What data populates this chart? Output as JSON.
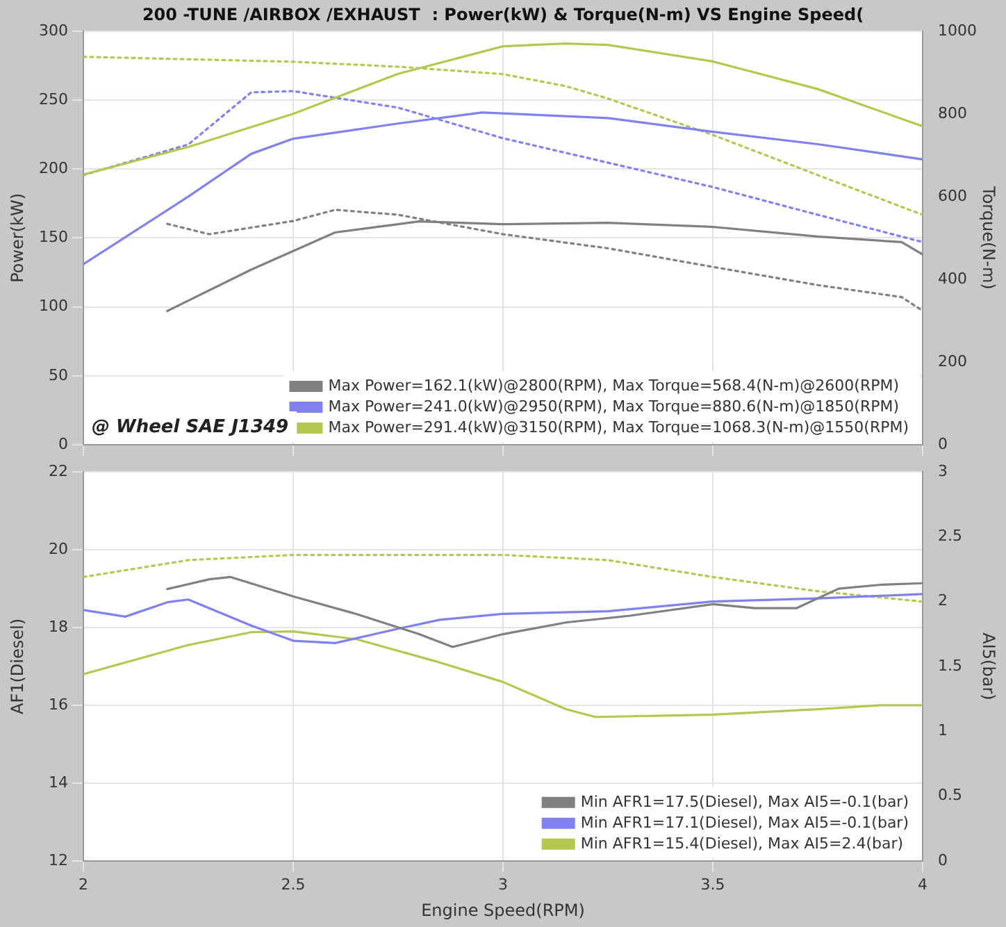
{
  "chart_data": [
    {
      "type": "line",
      "title": "200 -TUNE /AIRBOX /EXHAUST  : Power(kW) & Torque(N-m) VS Engine Speed(",
      "ylabel": "Power(kW)",
      "y2label": "Torque(N-m)",
      "xlim": [
        2,
        4
      ],
      "xticks": [
        2,
        2.5,
        3,
        3.5,
        4
      ],
      "ylim": [
        0,
        300
      ],
      "yticks": [
        0,
        50,
        100,
        150,
        200,
        250,
        300
      ],
      "y2lim": [
        0,
        1000
      ],
      "y2ticks": [
        0,
        200,
        400,
        600,
        800,
        1000
      ],
      "tick_labels": "y",
      "grid": true,
      "legend": "bottom right",
      "marker": "none",
      "annotations": [
        "@ Wheel SAE J1349"
      ],
      "series": [
        {
          "name": "Max Power=162.1(kW)@2800(RPM), Max Torque=568.4(N-m)@2600(RPM)",
          "color": "#808080",
          "line_style": "solid",
          "x": [
            2.2,
            2.4,
            2.6,
            2.8,
            3.0,
            3.25,
            3.5,
            3.75,
            3.95,
            4.0
          ],
          "values": [
            97,
            127,
            154,
            162,
            160,
            161,
            158,
            151,
            147,
            138
          ]
        },
        {
          "name": "Max Power=241.0(kW)@2950(RPM), Max Torque=880.6(N-m)@1850(RPM)",
          "color": "#8080f0",
          "line_style": "solid",
          "x": [
            2.0,
            2.25,
            2.4,
            2.5,
            2.75,
            2.95,
            3.25,
            3.5,
            3.75,
            4.0
          ],
          "values": [
            131,
            180,
            211,
            222,
            233,
            241,
            237,
            227,
            218,
            207
          ]
        },
        {
          "name": "Max Power=291.4(kW)@3150(RPM), Max Torque=1068.3(N-m)@1550(RPM)",
          "color": "#b4c850",
          "line_style": "solid",
          "x": [
            2.0,
            2.25,
            2.5,
            2.75,
            3.0,
            3.15,
            3.25,
            3.5,
            3.75,
            4.0
          ],
          "values": [
            196,
            216,
            240,
            269,
            289,
            291,
            290,
            278,
            258,
            231
          ]
        },
        {
          "color": "#808080",
          "axis": "y2",
          "line_style": "dotted",
          "x": [
            2.2,
            2.3,
            2.5,
            2.6,
            2.75,
            3.0,
            3.25,
            3.5,
            3.75,
            3.95,
            4.0
          ],
          "values": [
            534,
            509,
            541,
            568,
            556,
            509,
            475,
            430,
            386,
            357,
            324
          ]
        },
        {
          "color": "#8080f0",
          "axis": "y2",
          "line_style": "dotted",
          "x": [
            2.0,
            2.25,
            2.4,
            2.5,
            2.75,
            3.0,
            3.25,
            3.5,
            3.75,
            4.0
          ],
          "values": [
            652,
            726,
            852,
            855,
            815,
            741,
            682,
            623,
            556,
            490
          ]
        },
        {
          "color": "#b4c850",
          "axis": "y2",
          "line_style": "dotted",
          "x": [
            2.0,
            2.5,
            2.75,
            3.0,
            3.15,
            3.25,
            3.5,
            3.75,
            4.0
          ],
          "values": [
            938,
            926,
            914,
            896,
            867,
            837,
            749,
            652,
            556
          ]
        }
      ]
    },
    {
      "type": "line",
      "xlabel": "Engine Speed(RPM)",
      "ylabel": "AF1(Diesel)",
      "y2label": "AI5(bar)",
      "xlim": [
        2,
        4
      ],
      "xticks": [
        2,
        2.5,
        3,
        3.5,
        4
      ],
      "ylim": [
        12,
        22
      ],
      "yticks": [
        12,
        14,
        16,
        18,
        20,
        22
      ],
      "y2lim": [
        0,
        3
      ],
      "y2ticks": [
        0,
        0.5,
        1,
        1.5,
        2,
        2.5,
        3
      ],
      "grid": true,
      "legend": "bottom right",
      "marker": "none",
      "series": [
        {
          "name": "Min AFR1=17.5(Diesel), Max AI5=-0.1(bar)",
          "color": "#808080",
          "line_style": "solid",
          "x": [
            2.2,
            2.3,
            2.35,
            2.5,
            2.65,
            2.8,
            2.88,
            3.0,
            3.15,
            3.3,
            3.5,
            3.6,
            3.7,
            3.8,
            3.9,
            4.0
          ],
          "values": [
            18.99,
            19.24,
            19.3,
            18.8,
            18.35,
            17.83,
            17.5,
            17.83,
            18.13,
            18.3,
            18.6,
            18.5,
            18.5,
            19.0,
            19.1,
            19.14
          ]
        },
        {
          "name": "Min AFR1=17.1(Diesel), Max AI5=-0.1(bar)",
          "color": "#8080f0",
          "line_style": "solid",
          "x": [
            2.0,
            2.1,
            2.2,
            2.25,
            2.4,
            2.5,
            2.6,
            2.75,
            2.85,
            3.0,
            3.25,
            3.5,
            3.75,
            4.0
          ],
          "values": [
            18.45,
            18.28,
            18.65,
            18.72,
            18.05,
            17.66,
            17.6,
            17.97,
            18.2,
            18.35,
            18.42,
            18.67,
            18.75,
            18.86
          ]
        },
        {
          "name": "Min AFR1=15.4(Diesel), Max AI5=2.4(bar)",
          "color": "#b4c850",
          "line_style": "solid",
          "x": [
            2.0,
            2.25,
            2.4,
            2.5,
            2.65,
            2.85,
            3.0,
            3.15,
            3.22,
            3.5,
            3.75,
            3.9,
            4.0
          ],
          "values": [
            16.8,
            17.55,
            17.88,
            17.9,
            17.7,
            17.1,
            16.6,
            15.9,
            15.7,
            15.76,
            15.9,
            16.0,
            16.0
          ]
        },
        {
          "color": "#b4c850",
          "axis": "y2",
          "line_style": "dotted",
          "x": [
            2.0,
            2.25,
            2.5,
            3.0,
            3.25,
            3.5,
            3.75,
            4.0
          ],
          "values": [
            2.19,
            2.32,
            2.36,
            2.36,
            2.32,
            2.19,
            2.08,
            2.0
          ]
        }
      ]
    }
  ]
}
